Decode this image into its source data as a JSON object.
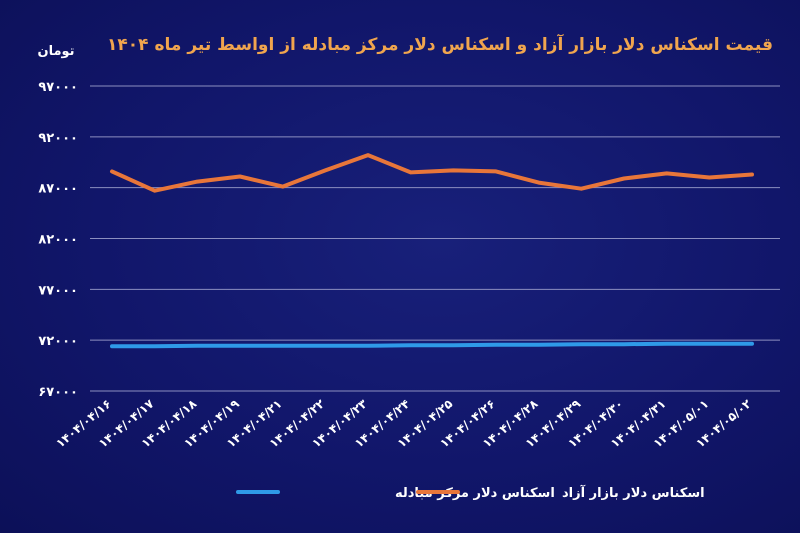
{
  "chart_data": {
    "type": "line",
    "title": "قیمت اسکناس دلار بازار آزاد و اسکناس دلار مرکز مبادله از اواسط تیر ماه ۱۴۰۴",
    "ylabel": "تومان",
    "ylim": [
      67000,
      97000
    ],
    "yticks": [
      67000,
      72000,
      77000,
      82000,
      87000,
      92000,
      97000
    ],
    "ytick_labels": [
      "۶۷۰۰۰",
      "۷۲۰۰۰",
      "۷۷۰۰۰",
      "۸۲۰۰۰",
      "۸۷۰۰۰",
      "۹۲۰۰۰",
      "۹۷۰۰۰"
    ],
    "grid": true,
    "legend_position": "bottom",
    "categories": [
      "۱۴۰۴/۰۴/۱۶",
      "۱۴۰۴/۰۴/۱۷",
      "۱۴۰۴/۰۴/۱۸",
      "۱۴۰۴/۰۴/۱۹",
      "۱۴۰۴/۰۴/۲۱",
      "۱۴۰۴/۰۴/۲۲",
      "۱۴۰۴/۰۴/۲۳",
      "۱۴۰۴/۰۴/۲۴",
      "۱۴۰۴/۰۴/۲۵",
      "۱۴۰۴/۰۴/۲۶",
      "۱۴۰۴/۰۴/۲۸",
      "۱۴۰۴/۰۴/۲۹",
      "۱۴۰۴/۰۴/۳۰",
      "۱۴۰۴/۰۴/۳۱",
      "۱۴۰۴/۰۵/۰۱",
      "۱۴۰۴/۰۵/۰۲"
    ],
    "series": [
      {
        "name": "اسکناس دلار بازار آزاد",
        "color": "#e8763a",
        "values": [
          88600,
          86700,
          87600,
          88100,
          87100,
          88700,
          90200,
          88500,
          88700,
          88600,
          87500,
          86900,
          87900,
          88400,
          88000,
          88300
        ]
      },
      {
        "name": "اسکناس دلار مرکز مبادله",
        "color": "#2f9ae8",
        "values": [
          71400,
          71400,
          71450,
          71450,
          71450,
          71450,
          71450,
          71500,
          71500,
          71550,
          71550,
          71600,
          71600,
          71650,
          71650,
          71650
        ]
      }
    ]
  }
}
